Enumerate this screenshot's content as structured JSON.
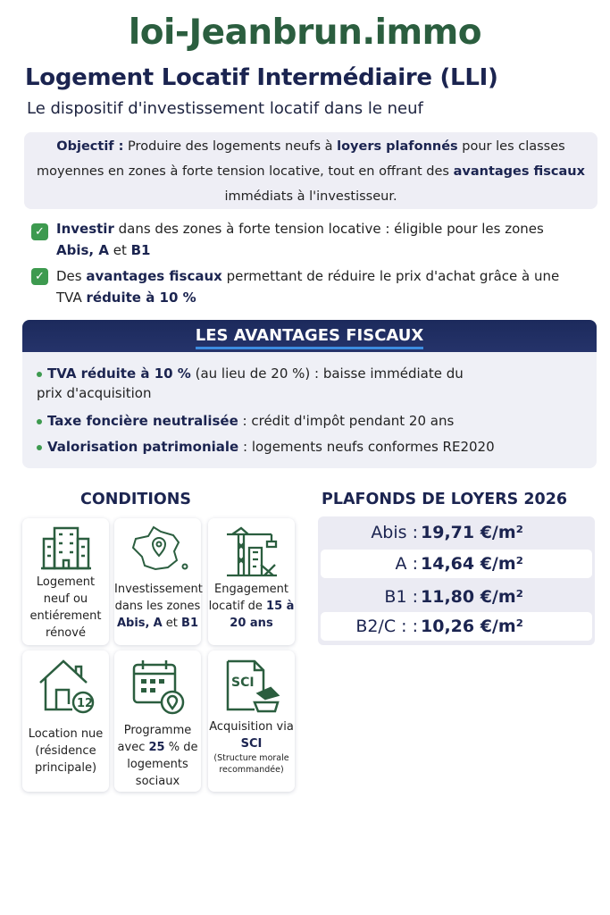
{
  "site": "loi-Jeanbrun.immo",
  "title": "Logement Locatif Intermédiaire (LLI)",
  "subtitle": "Le dispositif d'investissement locatif dans le neuf",
  "objective": {
    "label": "Objectif :",
    "t1": " Produire des logements neufs à ",
    "b1": "loyers plafonnés",
    "t2": " pour les classes moyennes en zones à forte tension locative, tout en offrant des ",
    "b2": "avantages fiscaux",
    "t3": " immédiats à l'investisseur."
  },
  "checks": [
    {
      "b1": "Investir",
      "t1": " dans des zones à forte tension locative : éligible pour les zones ",
      "b2": "Abis, A",
      "t2": " et ",
      "b3": "B1"
    },
    {
      "t1": "Des ",
      "b1": "avantages fiscaux",
      "t2": " permettant de réduire le prix d'achat grâce à une TVA ",
      "b2": "réduite à 10 %"
    }
  ],
  "advantages": {
    "title": "LES AVANTAGES FISCAUX",
    "items": [
      {
        "b": "TVA réduite à 10 %",
        "t": " (au lieu de 20 %) : baisse immédiate du prix d'acquisition"
      },
      {
        "b": "Taxe foncière neutralisée",
        "t": " : crédit d'impôt pendant 20 ans"
      },
      {
        "b": "Valorisation patrimoniale",
        "t": " : logements neufs conformes RE2020"
      }
    ]
  },
  "conditions": {
    "title": "CONDITIONS",
    "cards": [
      {
        "icon": "building-icon",
        "text": "Logement neuf ou entiérement rénové"
      },
      {
        "icon": "france-map-icon",
        "t1": "Investissement dans les zones ",
        "b1": "Abis,",
        "t2": " ",
        "b2": "A",
        "t3": " et ",
        "b3": "B1"
      },
      {
        "icon": "crane-icon",
        "t1": "Engagement locatif de ",
        "b1": "15 à 20 ans"
      },
      {
        "icon": "house-12-icon",
        "text": "Location nue (résidence principale)"
      },
      {
        "icon": "calendar-icon",
        "t1": "Programme avec ",
        "b1": "25",
        "t2": " % de logements sociaux"
      },
      {
        "icon": "sci-document-icon",
        "t1": "Acquisition via ",
        "b1": "SCI",
        "small": "(Structure morale recommandée)"
      }
    ]
  },
  "rents": {
    "title": "PLAFONDS DE LOYERS 2026",
    "rows": [
      {
        "zone": "Abis :",
        "value": "19,71 €/m²"
      },
      {
        "zone": "A :",
        "value": "14,64 €/m²"
      },
      {
        "zone": "B1 :",
        "value": "11,80 €/m²"
      },
      {
        "zone": "B2/C : :",
        "value": "10,26 €/m²"
      }
    ]
  },
  "colors": {
    "green": "#2b5e3f",
    "navy": "#1b2450",
    "check": "#3d9a4f"
  }
}
